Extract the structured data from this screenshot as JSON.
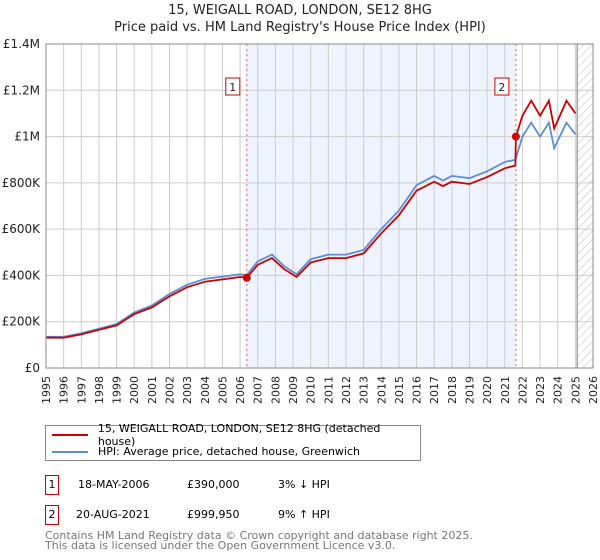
{
  "title": "15, WEIGALL ROAD, LONDON, SE12 8HG",
  "subtitle": "Price paid vs. HM Land Registry's House Price Index (HPI)",
  "chart_data": {
    "type": "line",
    "ylim": [
      0,
      1400000
    ],
    "xlim": [
      1995,
      2026
    ],
    "yticks": [
      {
        "v": 0,
        "label": "£0"
      },
      {
        "v": 200000,
        "label": "£200K"
      },
      {
        "v": 400000,
        "label": "£400K"
      },
      {
        "v": 600000,
        "label": "£600K"
      },
      {
        "v": 800000,
        "label": "£800K"
      },
      {
        "v": 1000000,
        "label": "£1M"
      },
      {
        "v": 1200000,
        "label": "£1.2M"
      },
      {
        "v": 1400000,
        "label": "£1.4M"
      }
    ],
    "xticks": [
      1995,
      1996,
      1997,
      1998,
      1999,
      2000,
      2001,
      2002,
      2003,
      2004,
      2005,
      2006,
      2007,
      2008,
      2009,
      2010,
      2011,
      2012,
      2013,
      2014,
      2015,
      2016,
      2017,
      2018,
      2019,
      2020,
      2021,
      2022,
      2023,
      2024,
      2025,
      2026
    ],
    "grid": true,
    "shaded_range": [
      2006.38,
      2021.63
    ],
    "future_hatch_from": 2025.1,
    "series": [
      {
        "name": "15, WEIGALL ROAD, LONDON, SE12 8HG (detached house)",
        "color": "#cc0000",
        "x": [
          1995,
          1996,
          1997,
          1998,
          1999,
          2000,
          2001,
          2002,
          2003,
          2004,
          2005,
          2006,
          2006.38,
          2007,
          2007.8,
          2008.5,
          2009.2,
          2010,
          2011,
          2012,
          2013,
          2014,
          2015,
          2016,
          2017,
          2017.5,
          2018,
          2019,
          2020,
          2021,
          2021.6,
          2021.63,
          2022,
          2022.5,
          2023,
          2023.5,
          2023.8,
          2024.5,
          2025
        ],
        "y": [
          131000,
          131000,
          145000,
          165000,
          184000,
          233000,
          262000,
          310000,
          349000,
          373000,
          383000,
          393000,
          390000,
          446000,
          475000,
          427000,
          393000,
          456000,
          475000,
          475000,
          495000,
          582000,
          660000,
          766000,
          805000,
          786000,
          805000,
          795000,
          825000,
          863000,
          875000,
          999950,
          1090000,
          1155000,
          1090000,
          1155000,
          1035000,
          1155000,
          1100000
        ]
      },
      {
        "name": "HPI: Average price, detached house, Greenwich",
        "color": "#5b8fd0",
        "x": [
          1995,
          1996,
          1997,
          1998,
          1999,
          2000,
          2001,
          2002,
          2003,
          2004,
          2005,
          2006,
          2006.38,
          2007,
          2007.8,
          2008.5,
          2009.2,
          2010,
          2011,
          2012,
          2013,
          2014,
          2015,
          2016,
          2017,
          2017.5,
          2018,
          2019,
          2020,
          2021,
          2021.6,
          2022,
          2022.5,
          2023,
          2023.5,
          2023.8,
          2024.5,
          2025
        ],
        "y": [
          135000,
          135000,
          150000,
          170000,
          190000,
          240000,
          270000,
          320000,
          360000,
          385000,
          395000,
          405000,
          402000,
          460000,
          490000,
          440000,
          405000,
          470000,
          490000,
          490000,
          510000,
          600000,
          680000,
          790000,
          830000,
          810000,
          830000,
          820000,
          850000,
          890000,
          900000,
          1000000,
          1060000,
          1000000,
          1060000,
          950000,
          1060000,
          1010000
        ]
      }
    ],
    "sales": [
      {
        "label": "1",
        "x": 2006.38,
        "y": 390000
      },
      {
        "label": "2",
        "x": 2021.63,
        "y": 999950
      }
    ]
  },
  "legend": {
    "red": "15, WEIGALL ROAD, LONDON, SE12 8HG (detached house)",
    "blue": "HPI: Average price, detached house, Greenwich"
  },
  "transactions": [
    {
      "num": "1",
      "date": "18-MAY-2006",
      "price": "£390,000",
      "hpi": "3% ↓ HPI"
    },
    {
      "num": "2",
      "date": "20-AUG-2021",
      "price": "£999,950",
      "hpi": "9% ↑ HPI"
    }
  ],
  "footer": {
    "line1": "Contains HM Land Registry data © Crown copyright and database right 2025.",
    "line2": "This data is licensed under the Open Government Licence v3.0."
  }
}
